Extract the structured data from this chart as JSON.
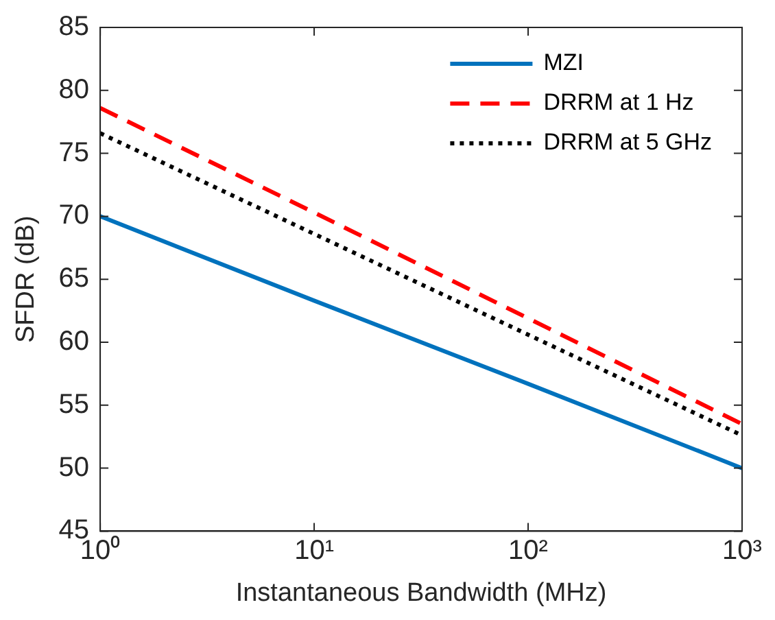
{
  "chart_data": {
    "type": "line",
    "xlabel": "Instantaneous Bandwidth (MHz)",
    "ylabel": "SFDR (dB)",
    "series": [
      {
        "name": "MZI",
        "color": "#0072bd",
        "line_style": "solid",
        "x": [
          1,
          10,
          100,
          1000
        ],
        "values": [
          70,
          63.3,
          56.7,
          50
        ]
      },
      {
        "name": "DRRM at 1 Hz",
        "color": "#ff0000",
        "line_style": "dashed",
        "x": [
          1,
          10,
          100,
          1000
        ],
        "values": [
          78.6,
          70.3,
          61.9,
          53.5
        ]
      },
      {
        "name": "DRRM at 5 GHz",
        "color": "#000000",
        "line_style": "dotted",
        "x": [
          1,
          10,
          100,
          1000
        ],
        "values": [
          76.6,
          68.6,
          60.6,
          52.6
        ]
      }
    ],
    "log": "x",
    "xlim": [
      1,
      1000
    ],
    "xticks": [
      {
        "value": 1,
        "label": "10⁰"
      },
      {
        "value": 10,
        "label": "10¹"
      },
      {
        "value": 100,
        "label": "10²"
      },
      {
        "value": 1000,
        "label": "10³"
      }
    ],
    "ylim": [
      45,
      85
    ],
    "yticks": [
      45,
      50,
      55,
      60,
      65,
      70,
      75,
      80,
      85
    ],
    "grid": false,
    "legend": "top right",
    "marker": "none"
  }
}
